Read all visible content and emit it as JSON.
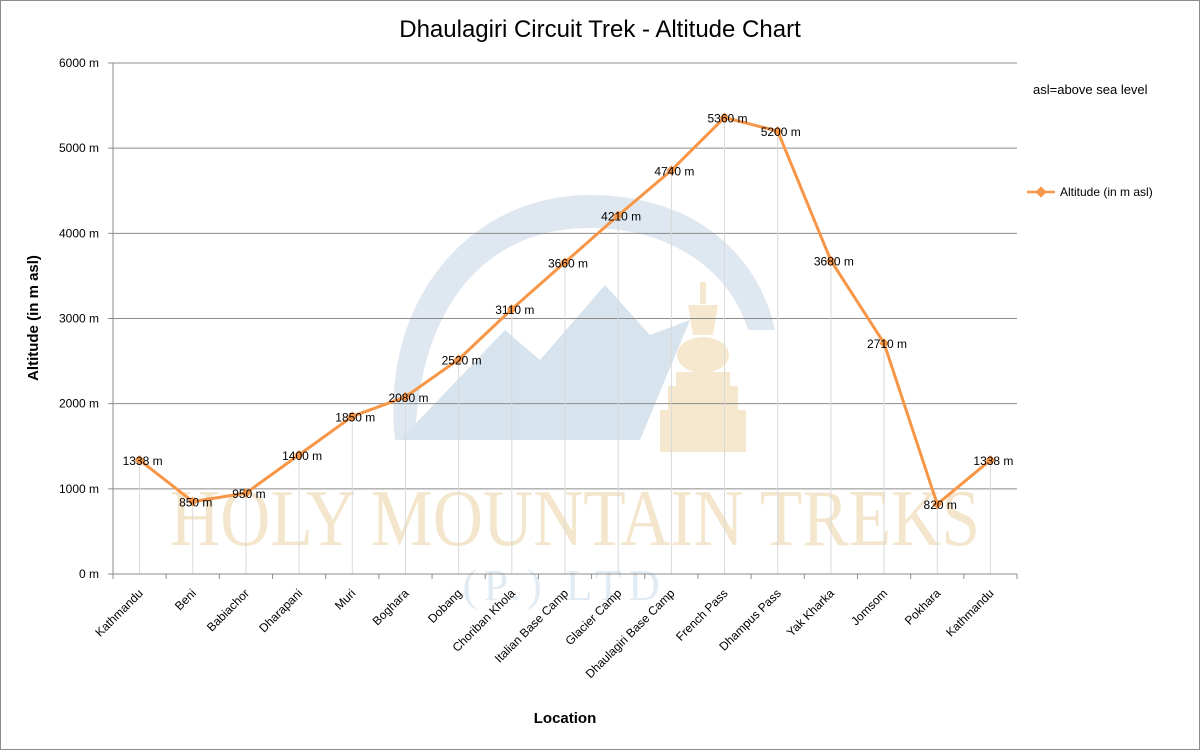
{
  "chart_data": {
    "type": "line",
    "title": "Dhaulagiri Circuit Trek - Altitude Chart",
    "xlabel": "Location",
    "ylabel": "Altitude (in m asl)",
    "ylim": [
      0,
      6000
    ],
    "ytick_step": 1000,
    "ytick_labels": [
      "0 m",
      "1000 m",
      "2000 m",
      "3000 m",
      "4000 m",
      "5000 m",
      "6000 m"
    ],
    "grid": "horizontal",
    "legend_position": "right",
    "categories": [
      "Kathmandu",
      "Beni",
      "Babiachor",
      "Dharapani",
      "Muri",
      "Boghara",
      "Dobang",
      "Choriban Khola",
      "Italian Base Camp",
      "Glacier Camp",
      "Dhaulagiri Base Camp",
      "French Pass",
      "Dhampus Pass",
      "Yak Kharka",
      "Jomsom",
      "Pokhara",
      "Kathmandu"
    ],
    "series": [
      {
        "name": "Altitude (in  m asl)",
        "color": "#f79646",
        "values": [
          1338,
          850,
          950,
          1400,
          1850,
          2080,
          2520,
          3110,
          3660,
          4210,
          4740,
          5360,
          5200,
          3680,
          2710,
          820,
          1338
        ],
        "data_labels": [
          "1338 m",
          "850 m",
          "950 m",
          "1400 m",
          "1850 m",
          "2080 m",
          "2520 m",
          "3110 m",
          "3660 m",
          "4210 m",
          "4740 m",
          "5360 m",
          "5200 m",
          "3680 m",
          "2710 m",
          "820 m",
          "1338 m"
        ]
      }
    ],
    "annotation": "asl=above sea level"
  },
  "watermark": {
    "text": "HOLY MOUNTAIN TREKS",
    "subtext": "(P.) LTD."
  }
}
